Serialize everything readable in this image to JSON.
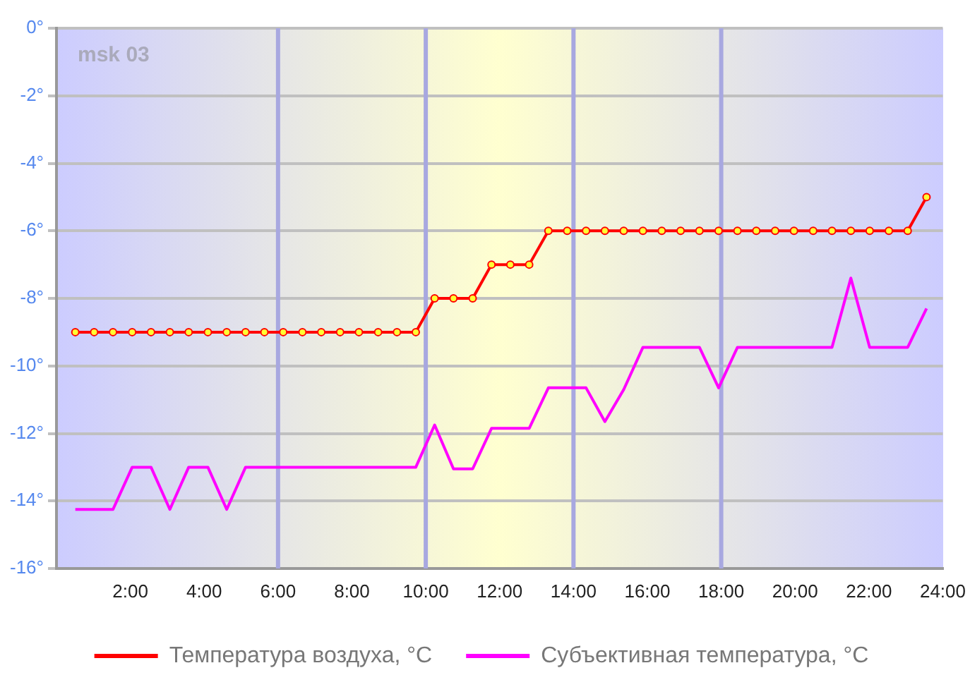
{
  "chart_data": {
    "type": "line",
    "x": [
      0.51,
      1.02,
      1.53,
      2.05,
      2.56,
      3.07,
      3.58,
      4.1,
      4.61,
      5.12,
      5.63,
      6.14,
      6.66,
      7.17,
      7.68,
      8.19,
      8.71,
      9.22,
      9.73,
      10.24,
      10.75,
      11.27,
      11.78,
      12.29,
      12.8,
      13.32,
      13.83,
      14.34,
      14.85,
      15.36,
      15.88,
      16.39,
      16.9,
      17.41,
      17.93,
      18.44,
      18.95,
      19.46,
      19.97,
      20.49,
      21.0,
      21.51,
      22.02,
      22.54,
      23.05,
      23.56
    ],
    "series": [
      {
        "name": "Температура воздуха, °C",
        "color": "#ff0000",
        "marker": "circle",
        "values": [
          -9,
          -9,
          -9,
          -9,
          -9,
          -9,
          -9,
          -9,
          -9,
          -9,
          -9,
          -9,
          -9,
          -9,
          -9,
          -9,
          -9,
          -9,
          -9,
          -8,
          -8,
          -8,
          -7,
          -7,
          -7,
          -6,
          -6,
          -6,
          -6,
          -6,
          -6,
          -6,
          -6,
          -6,
          -6,
          -6,
          -6,
          -6,
          -6,
          -6,
          -6,
          -6,
          -6,
          -6,
          -6,
          -5
        ]
      },
      {
        "name": "Субъективная температура, °C",
        "color": "#ff00ff",
        "marker": "none",
        "values": [
          -14.25,
          -14.25,
          -14.25,
          -13,
          -13,
          -14.25,
          -13,
          -13,
          -14.25,
          -13,
          -13,
          -13,
          -13,
          -13,
          -13,
          -13,
          -13,
          -13,
          -13,
          -11.75,
          -13.05,
          -13.05,
          -11.85,
          -11.85,
          -11.85,
          -10.65,
          -10.65,
          -10.65,
          -11.65,
          -10.7,
          -9.45,
          -9.45,
          -9.45,
          -9.45,
          -10.65,
          -9.45,
          -9.45,
          -9.45,
          -9.45,
          -9.45,
          -9.45,
          -7.4,
          -9.45,
          -9.45,
          -9.45,
          -8.3
        ]
      }
    ],
    "xlim": [
      0,
      24
    ],
    "xticks": [
      {
        "value": 0,
        "label": null
      },
      {
        "value": 2,
        "label": "2:00"
      },
      {
        "value": 4,
        "label": "4:00"
      },
      {
        "value": 6,
        "label": "6:00"
      },
      {
        "value": 8,
        "label": "8:00"
      },
      {
        "value": 10,
        "label": "10:00"
      },
      {
        "value": 12,
        "label": "12:00"
      },
      {
        "value": 14,
        "label": "14:00"
      },
      {
        "value": 16,
        "label": "16:00"
      },
      {
        "value": 18,
        "label": "18:00"
      },
      {
        "value": 20,
        "label": "20:00"
      },
      {
        "value": 22,
        "label": "22:00"
      },
      {
        "value": 24,
        "label": "24:00"
      }
    ],
    "ylim": [
      -16,
      0
    ],
    "yticks": [
      {
        "value": -16,
        "label": "-16°"
      },
      {
        "value": -14,
        "label": "-14°"
      },
      {
        "value": -12,
        "label": "-12°"
      },
      {
        "value": -10,
        "label": "-10°"
      },
      {
        "value": -8,
        "label": "-8°"
      },
      {
        "value": -6,
        "label": "-6°"
      },
      {
        "value": -4,
        "label": "-4°"
      },
      {
        "value": -2,
        "label": "-2°"
      },
      {
        "value": 0,
        "label": "0°"
      }
    ],
    "ref_lines": [
      {
        "axis": "x",
        "value": 6,
        "color": "#a8a8e0"
      },
      {
        "axis": "x",
        "value": 10,
        "color": "#a8a8e0"
      },
      {
        "axis": "x",
        "value": 14,
        "color": "#a8a8e0"
      },
      {
        "axis": "x",
        "value": 18,
        "color": "#a8a8e0"
      }
    ],
    "annotations": [
      "msk 03"
    ],
    "grid": "y",
    "legend": "bottom"
  }
}
